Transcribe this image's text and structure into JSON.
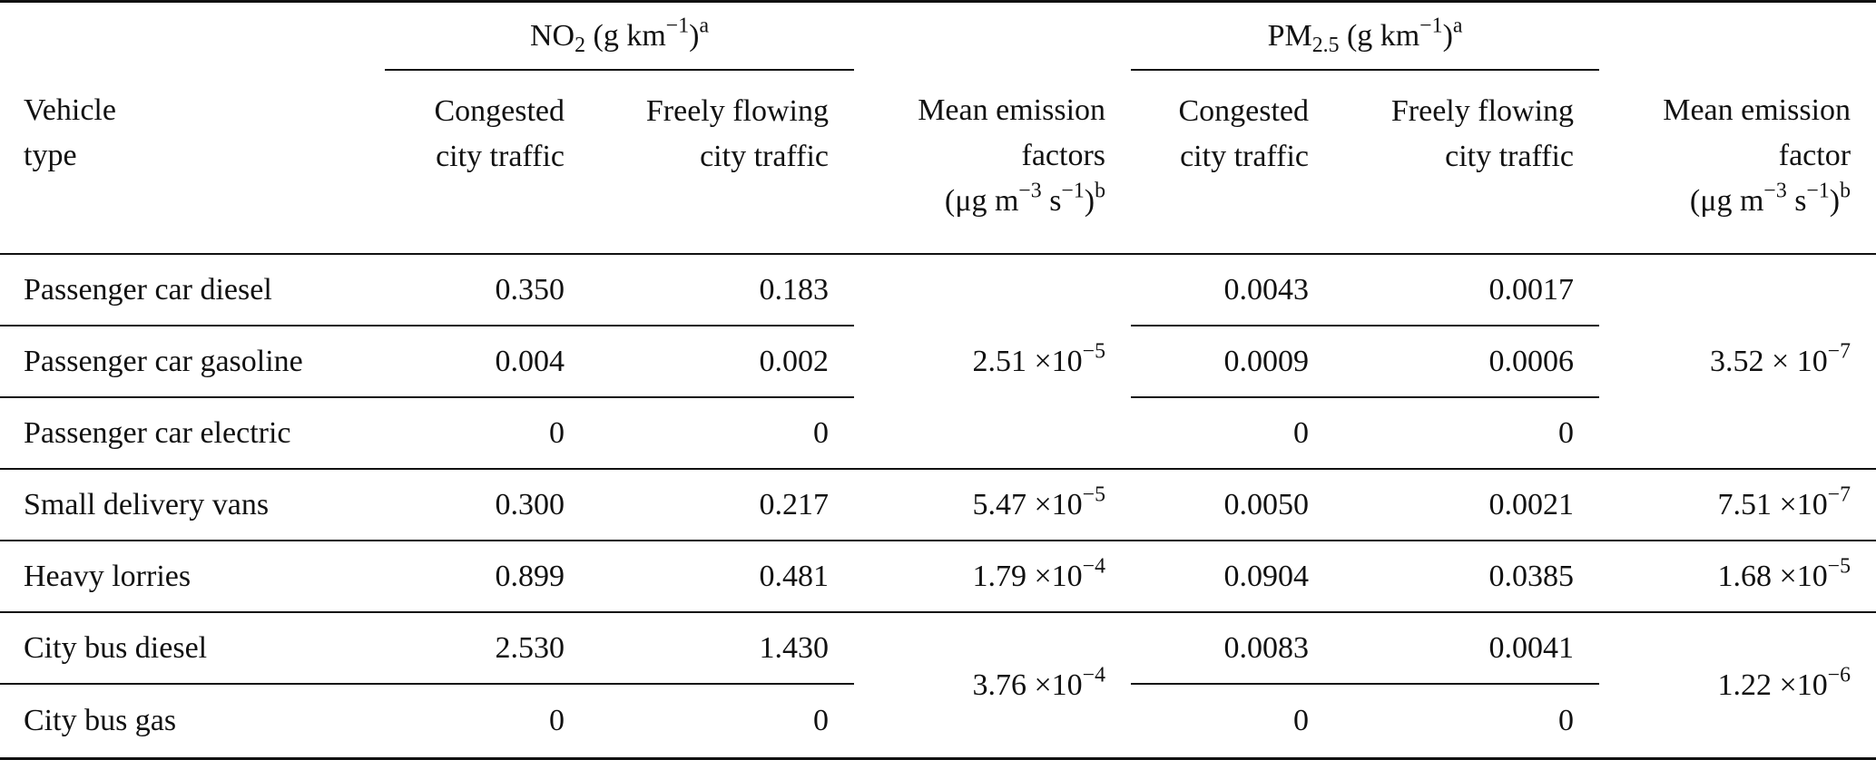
{
  "header": {
    "no2_group": {
      "label": "NO",
      "sub": "2",
      "unit": " (g km",
      "exp": "−1",
      "close": ")",
      "note": "a"
    },
    "pm_group": {
      "label": "PM",
      "sub": "2.5",
      "unit": " (g km",
      "exp": "−1",
      "close": ")",
      "note": "a"
    },
    "vehicle_type": [
      "Vehicle",
      "type"
    ],
    "congested": [
      "Congested",
      "city traffic"
    ],
    "freely": [
      "Freely flowing",
      "city traffic"
    ],
    "no2_mean": {
      "lines": [
        "Mean emission",
        "factors"
      ],
      "unit_open": "(μg m",
      "unit_exp1": "−3",
      "unit_mid": " s",
      "unit_exp2": "−1",
      "unit_close": ")",
      "note": "b"
    },
    "pm_mean": {
      "lines": [
        "Mean emission",
        "factor"
      ],
      "unit_open": "(μg m",
      "unit_exp1": "−3",
      "unit_mid": " s",
      "unit_exp2": "−1",
      "unit_close": ")",
      "note": "b"
    }
  },
  "rows": [
    {
      "vehicle": "Passenger car diesel",
      "no2_congested": "0.350",
      "no2_free": "0.183",
      "pm_congested": "0.0043",
      "pm_free": "0.0017"
    },
    {
      "vehicle": "Passenger car gasoline",
      "no2_congested": "0.004",
      "no2_free": "0.002",
      "pm_congested": "0.0009",
      "pm_free": "0.0006"
    },
    {
      "vehicle": "Passenger car electric",
      "no2_congested": "0",
      "no2_free": "0",
      "pm_congested": "0",
      "pm_free": "0"
    },
    {
      "vehicle": "Small delivery vans",
      "no2_congested": "0.300",
      "no2_free": "0.217",
      "pm_congested": "0.0050",
      "pm_free": "0.0021"
    },
    {
      "vehicle": "Heavy lorries",
      "no2_congested": "0.899",
      "no2_free": "0.481",
      "pm_congested": "0.0904",
      "pm_free": "0.0385"
    },
    {
      "vehicle": "City bus diesel",
      "no2_congested": "2.530",
      "no2_free": "1.430",
      "pm_congested": "0.0083",
      "pm_free": "0.0041"
    },
    {
      "vehicle": "City bus gas",
      "no2_congested": "0",
      "no2_free": "0",
      "pm_congested": "0",
      "pm_free": "0"
    }
  ],
  "means": {
    "passenger_no2": {
      "mant": "2.51",
      "times": " ×10",
      "exp": "−5"
    },
    "passenger_pm": {
      "mant": "3.52",
      "times": " × 10",
      "exp": "−7"
    },
    "vans_no2": {
      "mant": "5.47",
      "times": " ×10",
      "exp": "−5"
    },
    "vans_pm": {
      "mant": "7.51",
      "times": " ×10",
      "exp": "−7"
    },
    "lorries_no2": {
      "mant": "1.79",
      "times": " ×10",
      "exp": "−4"
    },
    "lorries_pm": {
      "mant": "1.68",
      "times": " ×10",
      "exp": "−5"
    },
    "bus_no2": {
      "mant": "3.76",
      "times": " ×10",
      "exp": "−4"
    },
    "bus_pm": {
      "mant": "1.22",
      "times": " ×10",
      "exp": "−6"
    }
  }
}
